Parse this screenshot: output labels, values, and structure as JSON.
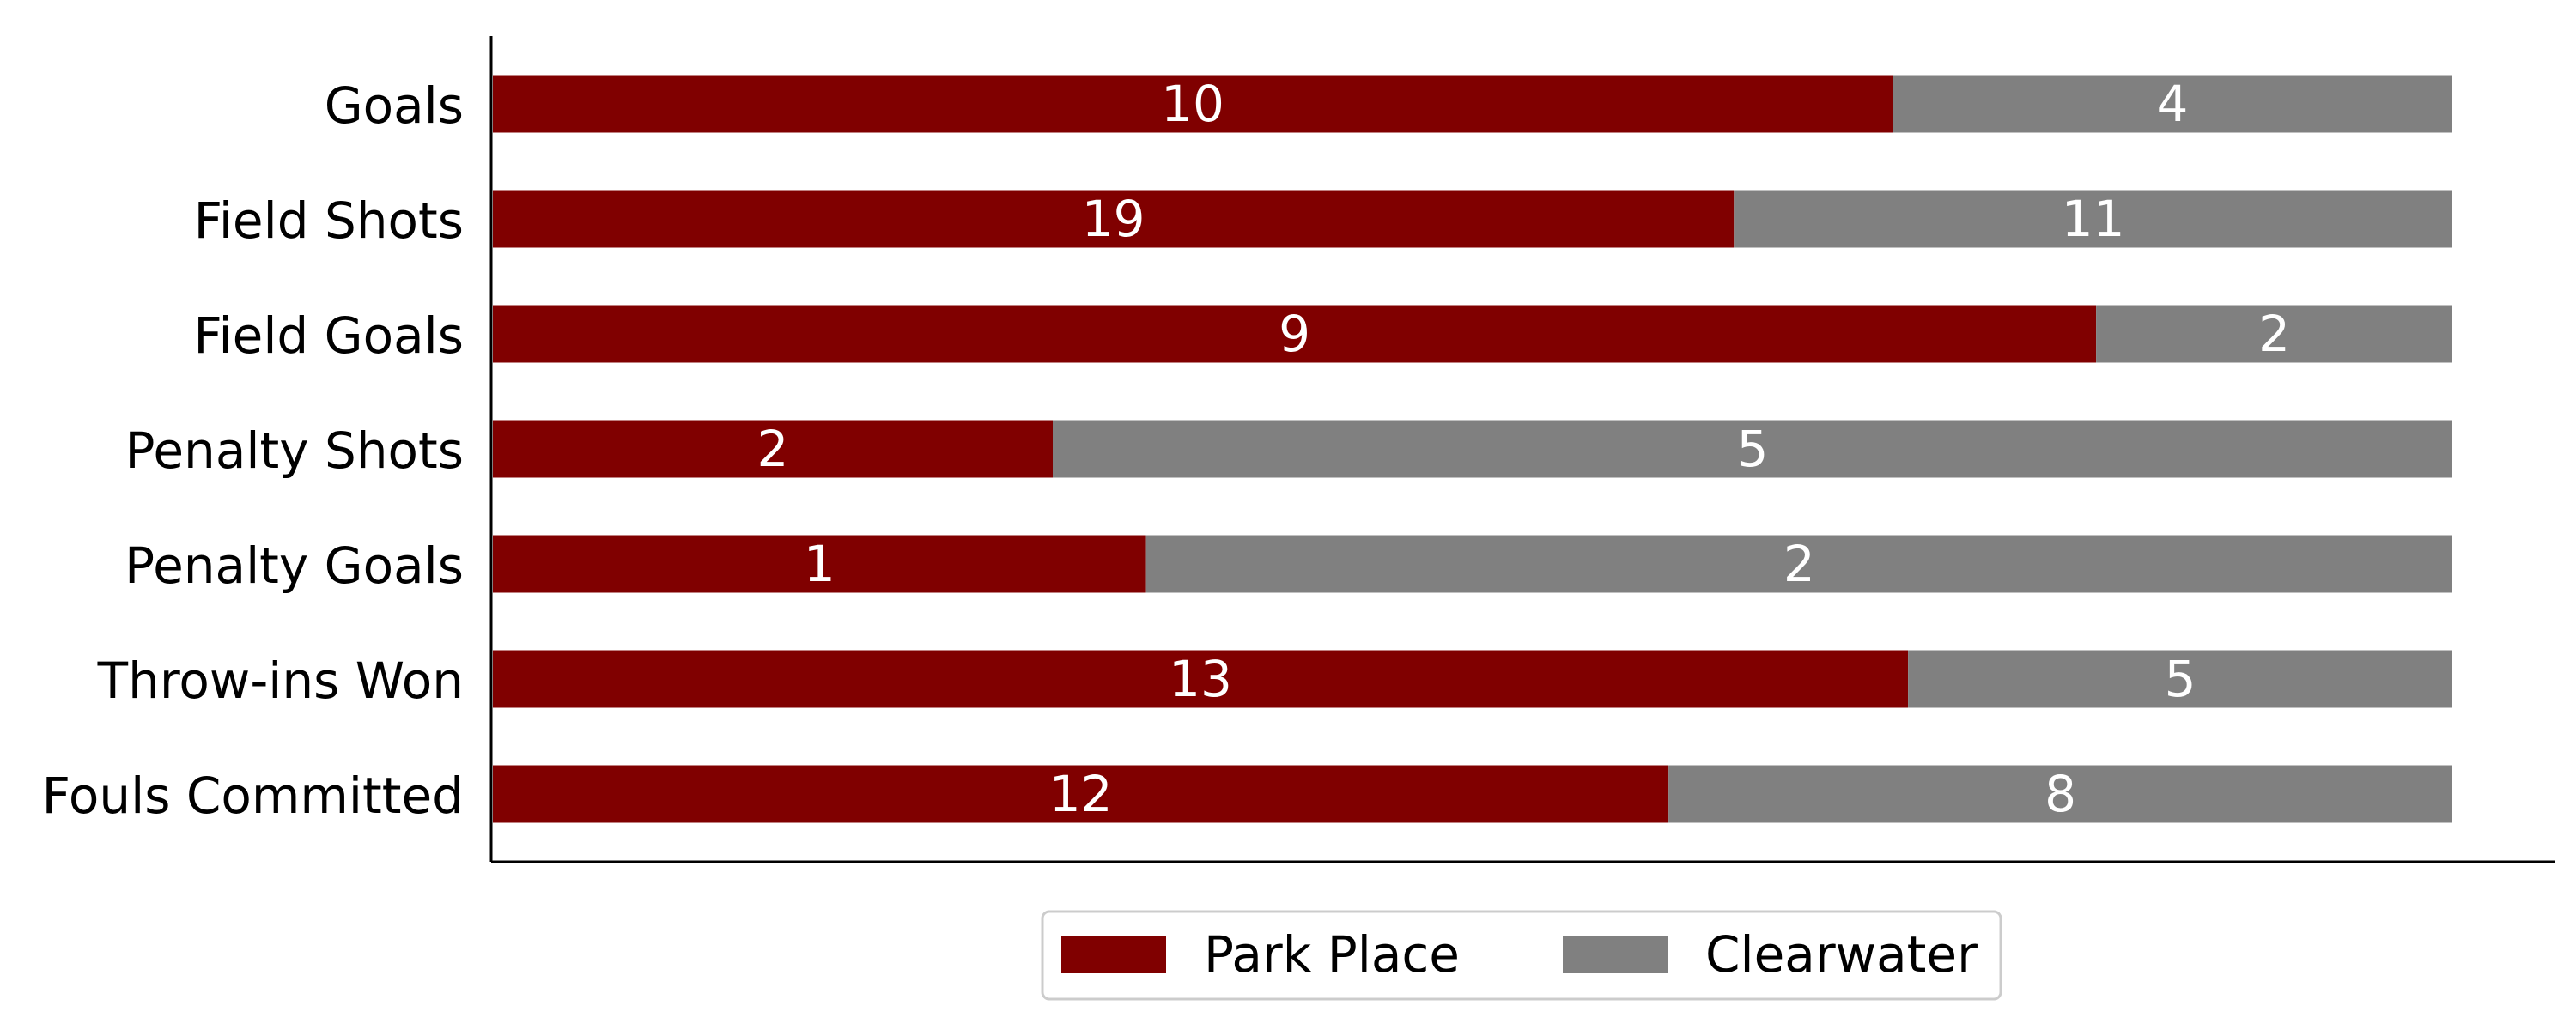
{
  "chart_data": {
    "type": "bar",
    "orientation": "horizontal",
    "stacked": true,
    "normalized": true,
    "categories": [
      "Goals",
      "Field Shots",
      "Field Goals",
      "Penalty Shots",
      "Penalty Goals",
      "Throw-ins Won",
      "Fouls Committed"
    ],
    "series": [
      {
        "name": "Park Place",
        "color": "#800000",
        "values": [
          10,
          19,
          9,
          2,
          1,
          13,
          12
        ]
      },
      {
        "name": "Clearwater",
        "color": "#808080",
        "values": [
          4,
          11,
          2,
          5,
          2,
          5,
          8
        ]
      }
    ],
    "legend_position": "bottom-center",
    "grid": false,
    "xlabel": "",
    "ylabel": ""
  }
}
